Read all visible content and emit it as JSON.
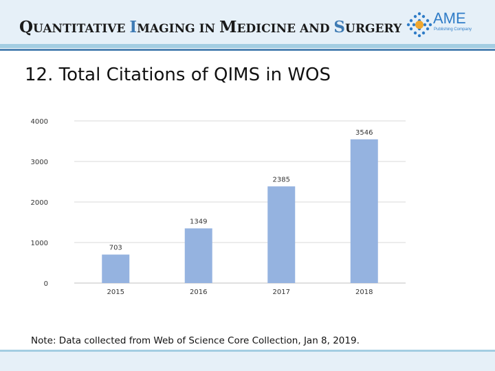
{
  "header": {
    "journal_parts": [
      [
        "Q",
        "UANTITATIVE "
      ],
      [
        "I",
        "MAGING IN "
      ],
      [
        "M",
        "EDICINE AND "
      ],
      [
        "S",
        "URGERY"
      ]
    ],
    "publisher": "AME",
    "publisher_sub": "Publishing Company"
  },
  "slide": {
    "title": "12. Total Citations of QIMS in WOS",
    "note": "Note: Data collected from Web of Science Core Collection, Jan 8, 2019."
  },
  "colors": {
    "bar": "#95b3e0",
    "grid": "#d9d9d9"
  },
  "chart_data": {
    "type": "bar",
    "title": "",
    "xlabel": "",
    "ylabel": "",
    "categories": [
      "2015",
      "2016",
      "2017",
      "2018"
    ],
    "values": [
      703,
      1349,
      2385,
      3546
    ],
    "ylim": [
      0,
      4000
    ],
    "yticks": [
      0,
      1000,
      2000,
      3000,
      4000
    ],
    "grid": true,
    "data_labels": true
  }
}
